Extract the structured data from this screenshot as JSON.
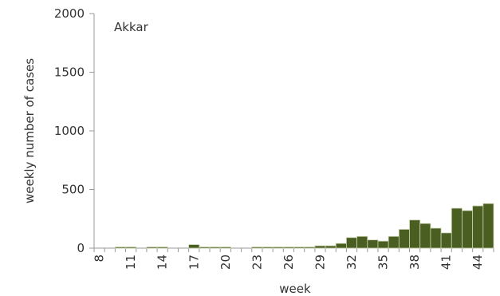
{
  "chart_data": {
    "type": "bar",
    "title": "Akkar",
    "xlabel": "week",
    "ylabel": "weekly number of cases",
    "ylim": [
      0,
      2000
    ],
    "yticks": [
      0,
      500,
      1000,
      1500,
      2000
    ],
    "xtick_labels": [
      "8",
      "11",
      "14",
      "17",
      "20",
      "23",
      "26",
      "29",
      "32",
      "35",
      "38",
      "41",
      "44"
    ],
    "categories": [
      8,
      9,
      10,
      11,
      12,
      13,
      14,
      15,
      16,
      17,
      18,
      19,
      20,
      21,
      22,
      23,
      24,
      25,
      26,
      27,
      28,
      29,
      30,
      31,
      32,
      33,
      34,
      35,
      36,
      37,
      38,
      39,
      40,
      41,
      42,
      43,
      44,
      45
    ],
    "values": [
      0,
      0,
      10,
      10,
      0,
      10,
      10,
      0,
      0,
      30,
      10,
      10,
      10,
      0,
      0,
      10,
      10,
      10,
      10,
      10,
      10,
      20,
      20,
      40,
      90,
      100,
      70,
      60,
      100,
      160,
      240,
      210,
      170,
      130,
      340,
      320,
      360,
      380
    ],
    "bar_color": "#4b5e21",
    "grid": false,
    "legend": "none"
  }
}
